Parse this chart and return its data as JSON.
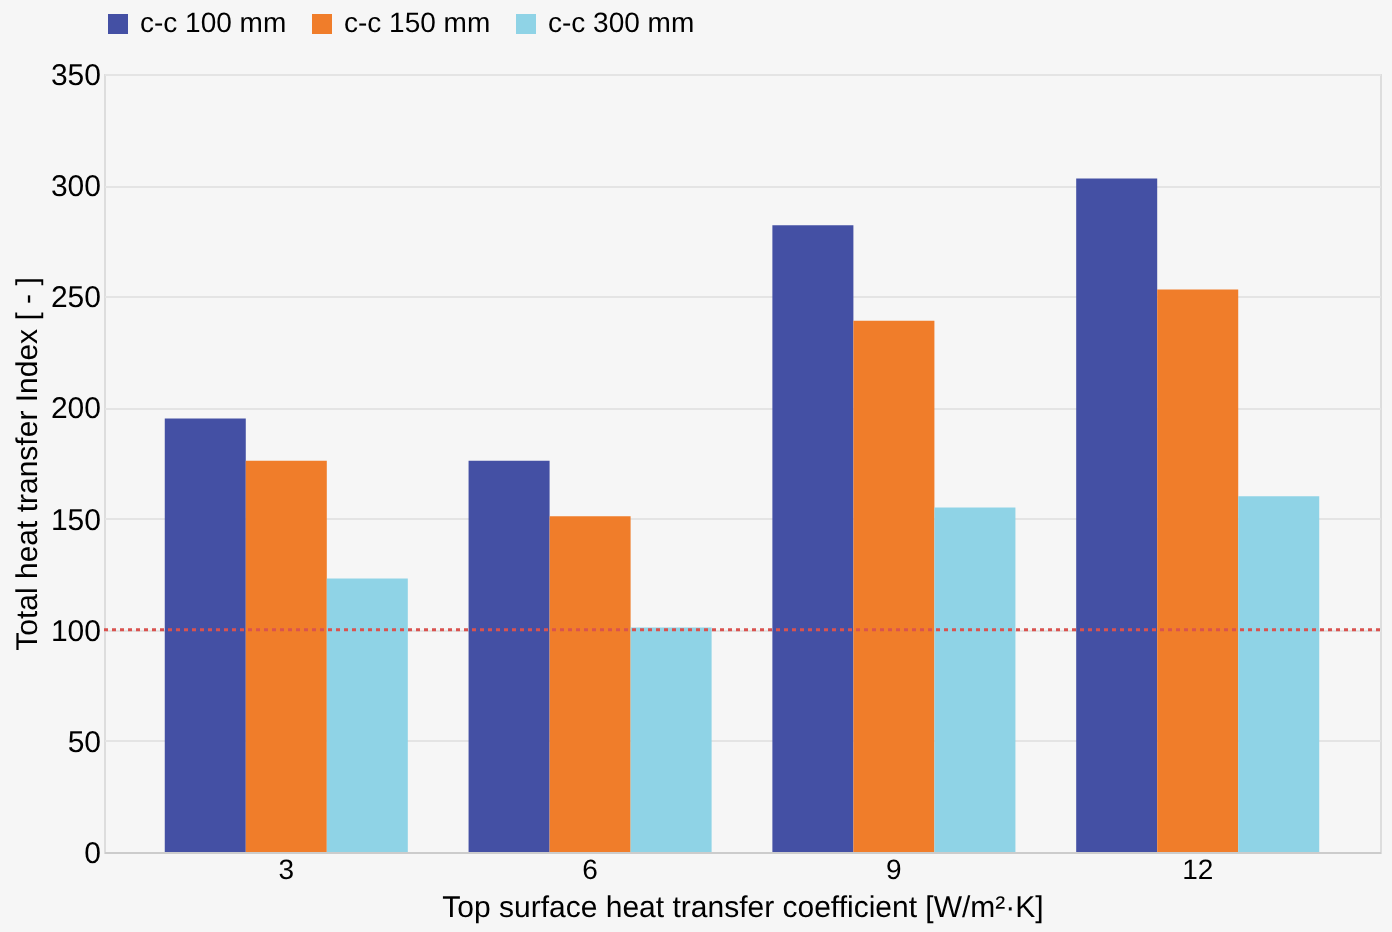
{
  "chart_data": {
    "type": "bar",
    "xlabel": "Top surface heat transfer coefficient  [W/m²·K]",
    "ylabel": "Total heat transfer Index  [ - ]",
    "categories": [
      "3",
      "6",
      "9",
      "12"
    ],
    "series": [
      {
        "name": "c-c 100 mm",
        "color": "#4450a4",
        "values": [
          195,
          176,
          282,
          303
        ]
      },
      {
        "name": "c-c 150 mm",
        "color": "#f07d2a",
        "values": [
          176,
          151,
          239,
          253
        ]
      },
      {
        "name": "c-c 300 mm",
        "color": "#8fd3e6",
        "values": [
          123,
          101,
          155,
          160
        ]
      }
    ],
    "ylim": [
      0,
      350
    ],
    "yticks": [
      0,
      50,
      100,
      150,
      200,
      250,
      300,
      350
    ],
    "grid": "y",
    "legend": "top",
    "ref_lines": [
      {
        "axis": "y",
        "value": 100,
        "color": "#d9534f",
        "line_style": "dotted"
      }
    ]
  }
}
